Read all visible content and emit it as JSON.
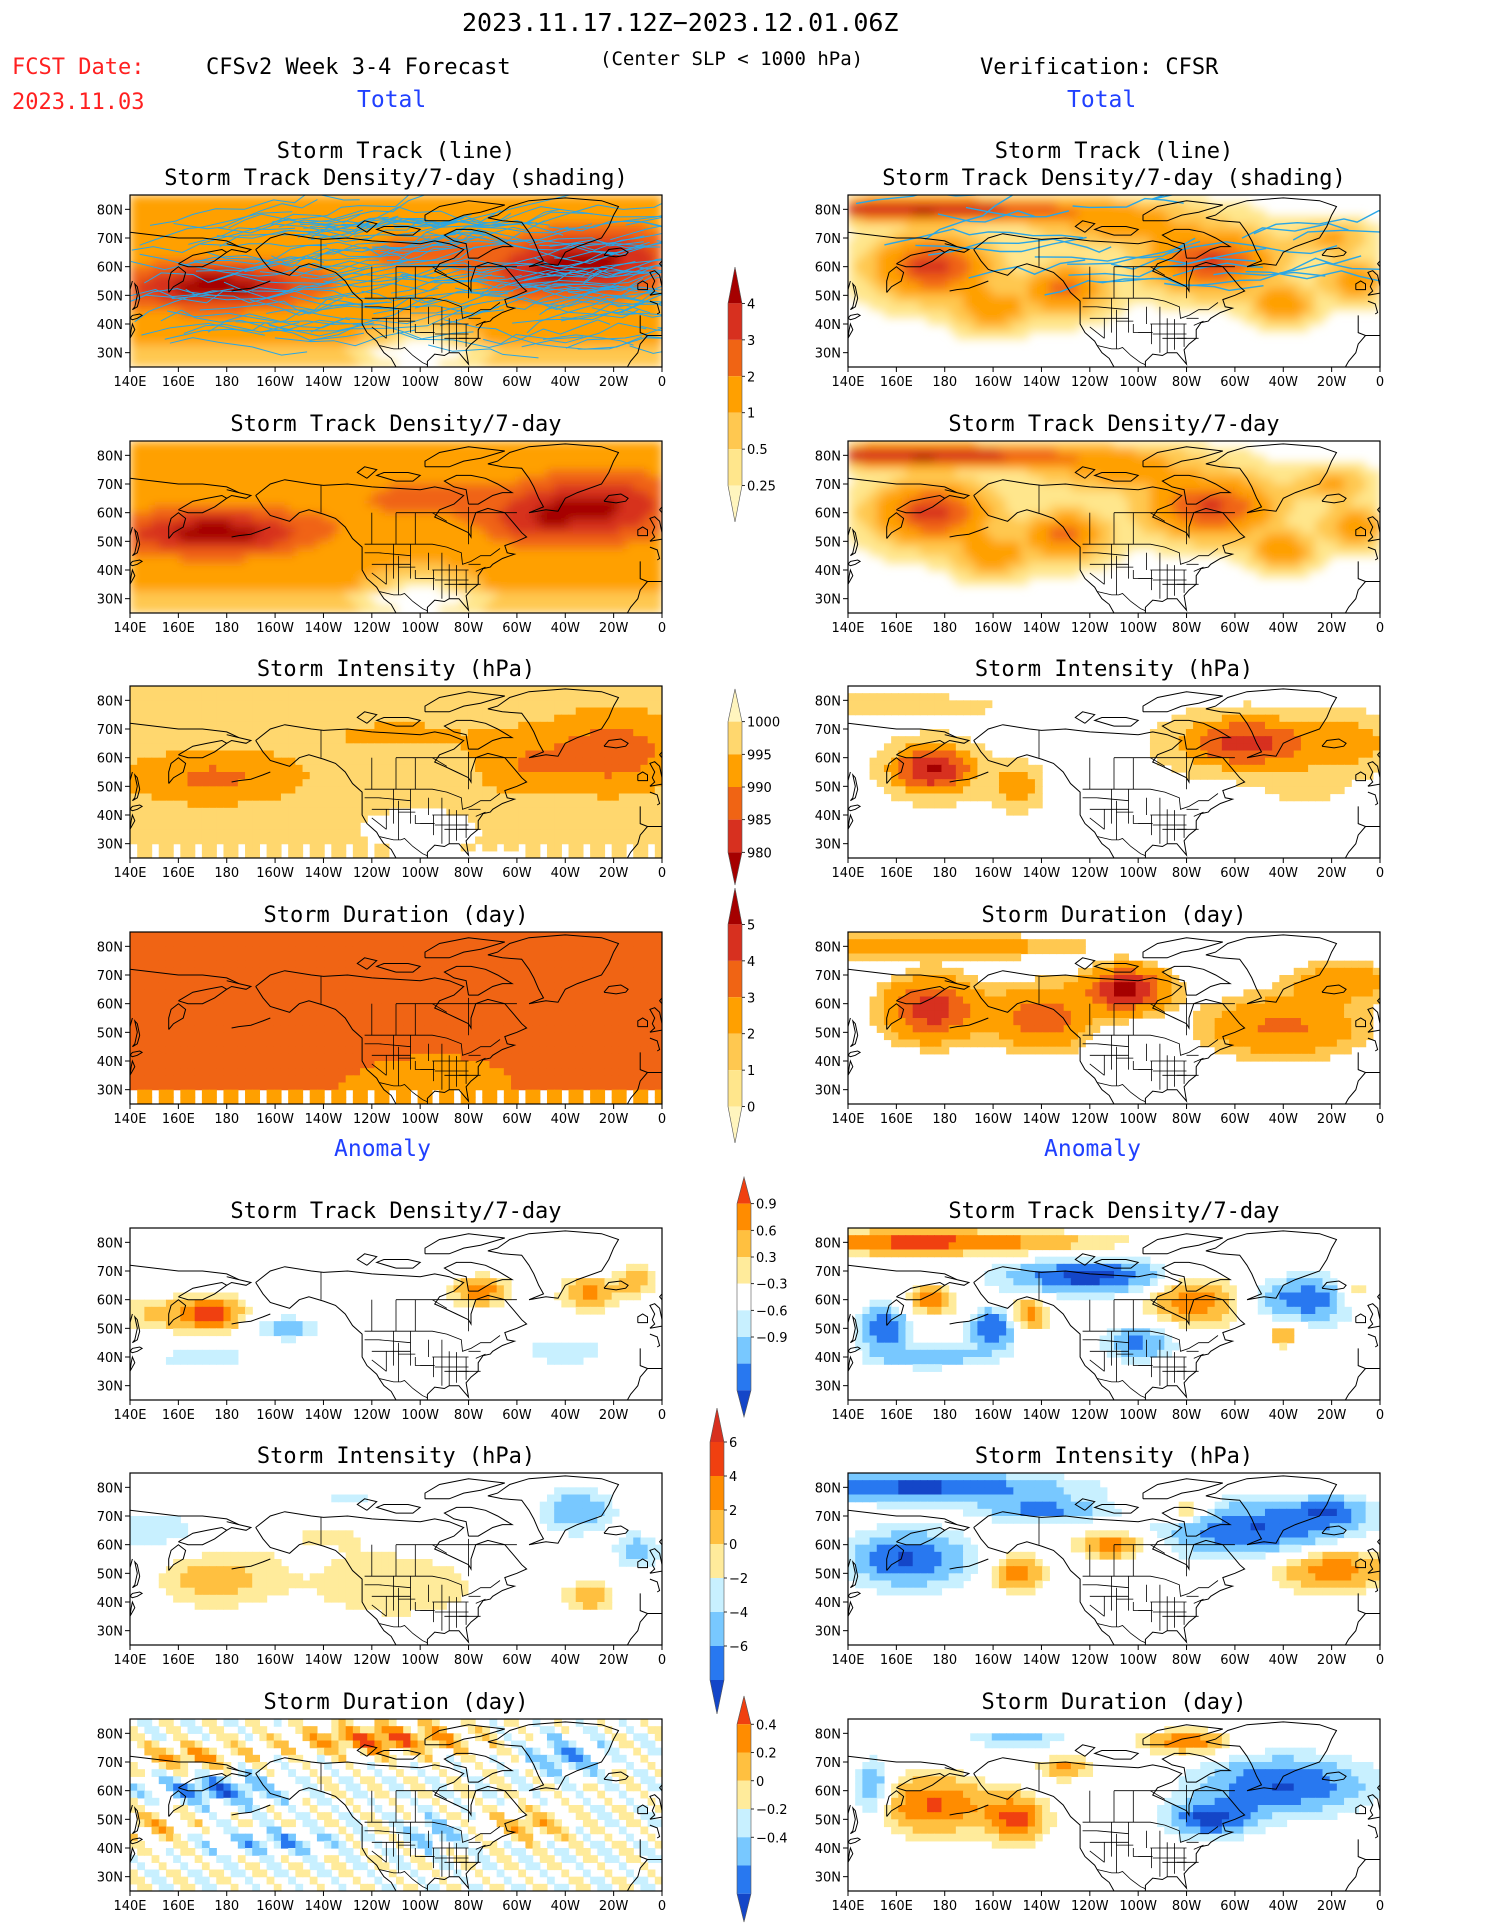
{
  "header": {
    "period": "2023.11.17.12Z−2023.12.01.06Z",
    "fcst_label": "FCST Date:",
    "fcst_date": "2023.11.03",
    "forecast_title": "CFSv2 Week 3-4 Forecast",
    "criterion": "(Center SLP < 1000 hPa)",
    "verification": "Verification: CFSR",
    "section_total": "Total",
    "section_anomaly": "Anomaly"
  },
  "colors": {
    "red_label": "#ff2020",
    "blue_label": "#2040ff",
    "track_line": "#29a6e6",
    "ocean": "#ffffff",
    "coast": "#000000"
  },
  "chart_data": [
    {
      "type": "heatmap",
      "panel": "fcst-track",
      "column": "CFSv2 Week 3-4 Forecast",
      "section": "Total",
      "title": [
        "Storm Track (line)",
        "Storm Track Density/7-day (shading)"
      ],
      "field": "track-density-forecast",
      "lines": true,
      "line_density": "high",
      "x_ticks": [
        "140E",
        "160E",
        "180",
        "160W",
        "140W",
        "120W",
        "100W",
        "80W",
        "60W",
        "40W",
        "20W",
        "0"
      ],
      "y_ticks": [
        "80N",
        "70N",
        "60N",
        "50N",
        "40N",
        "30N"
      ],
      "xlim": [
        "140E",
        "0"
      ],
      "ylim": [
        "25N",
        "85N"
      ]
    },
    {
      "type": "heatmap",
      "panel": "cfsr-track",
      "column": "Verification: CFSR",
      "section": "Total",
      "title": [
        "Storm Track (line)",
        "Storm Track Density/7-day (shading)"
      ],
      "field": "track-density-cfsr",
      "lines": true,
      "line_density": "low",
      "x_ticks": [
        "140E",
        "160E",
        "180",
        "160W",
        "140W",
        "120W",
        "100W",
        "80W",
        "60W",
        "40W",
        "20W",
        "0"
      ],
      "y_ticks": [
        "80N",
        "70N",
        "60N",
        "50N",
        "40N",
        "30N"
      ],
      "xlim": [
        "140E",
        "0"
      ],
      "ylim": [
        "25N",
        "85N"
      ]
    },
    {
      "type": "heatmap",
      "panel": "fcst-density",
      "column": "CFSv2 Week 3-4 Forecast",
      "section": "Total",
      "title": [
        "Storm Track Density/7-day"
      ],
      "field": "track-density-forecast",
      "x_ticks": [
        "140E",
        "160E",
        "180",
        "160W",
        "140W",
        "120W",
        "100W",
        "80W",
        "60W",
        "40W",
        "20W",
        "0"
      ],
      "y_ticks": [
        "80N",
        "70N",
        "60N",
        "50N",
        "40N",
        "30N"
      ],
      "xlim": [
        "140E",
        "0"
      ],
      "ylim": [
        "25N",
        "85N"
      ]
    },
    {
      "type": "heatmap",
      "panel": "cfsr-density",
      "column": "Verification: CFSR",
      "section": "Total",
      "title": [
        "Storm Track Density/7-day"
      ],
      "field": "track-density-cfsr",
      "x_ticks": [
        "140E",
        "160E",
        "180",
        "160W",
        "140W",
        "120W",
        "100W",
        "80W",
        "60W",
        "40W",
        "20W",
        "0"
      ],
      "y_ticks": [
        "80N",
        "70N",
        "60N",
        "50N",
        "40N",
        "30N"
      ],
      "xlim": [
        "140E",
        "0"
      ],
      "ylim": [
        "25N",
        "85N"
      ]
    },
    {
      "type": "heatmap",
      "panel": "fcst-intensity",
      "column": "CFSv2 Week 3-4 Forecast",
      "section": "Total",
      "title": [
        "Storm Intensity (hPa)"
      ],
      "field": "intensity-forecast",
      "x_ticks": [
        "140E",
        "160E",
        "180",
        "160W",
        "140W",
        "120W",
        "100W",
        "80W",
        "60W",
        "40W",
        "20W",
        "0"
      ],
      "y_ticks": [
        "80N",
        "70N",
        "60N",
        "50N",
        "40N",
        "30N"
      ],
      "xlim": [
        "140E",
        "0"
      ],
      "ylim": [
        "25N",
        "85N"
      ]
    },
    {
      "type": "heatmap",
      "panel": "cfsr-intensity",
      "column": "Verification: CFSR",
      "section": "Total",
      "title": [
        "Storm Intensity (hPa)"
      ],
      "field": "intensity-cfsr",
      "x_ticks": [
        "140E",
        "160E",
        "180",
        "160W",
        "140W",
        "120W",
        "100W",
        "80W",
        "60W",
        "40W",
        "20W",
        "0"
      ],
      "y_ticks": [
        "80N",
        "70N",
        "60N",
        "50N",
        "40N",
        "30N"
      ],
      "xlim": [
        "140E",
        "0"
      ],
      "ylim": [
        "25N",
        "85N"
      ]
    },
    {
      "type": "heatmap",
      "panel": "fcst-duration",
      "column": "CFSv2 Week 3-4 Forecast",
      "section": "Total",
      "title": [
        "Storm Duration (day)"
      ],
      "field": "duration-forecast",
      "x_ticks": [
        "140E",
        "160E",
        "180",
        "160W",
        "140W",
        "120W",
        "100W",
        "80W",
        "60W",
        "40W",
        "20W",
        "0"
      ],
      "y_ticks": [
        "80N",
        "70N",
        "60N",
        "50N",
        "40N",
        "30N"
      ],
      "xlim": [
        "140E",
        "0"
      ],
      "ylim": [
        "25N",
        "85N"
      ]
    },
    {
      "type": "heatmap",
      "panel": "cfsr-duration",
      "column": "Verification: CFSR",
      "section": "Total",
      "title": [
        "Storm Duration (day)"
      ],
      "field": "duration-cfsr",
      "x_ticks": [
        "140E",
        "160E",
        "180",
        "160W",
        "140W",
        "120W",
        "100W",
        "80W",
        "60W",
        "40W",
        "20W",
        "0"
      ],
      "y_ticks": [
        "80N",
        "70N",
        "60N",
        "50N",
        "40N",
        "30N"
      ],
      "xlim": [
        "140E",
        "0"
      ],
      "ylim": [
        "25N",
        "85N"
      ]
    },
    {
      "type": "heatmap",
      "panel": "fcst-density-anom",
      "column": "CFSv2 Week 3-4 Forecast",
      "section": "Anomaly",
      "title": [
        "Storm Track Density/7-day"
      ],
      "field": "density-anomaly-forecast",
      "x_ticks": [
        "140E",
        "160E",
        "180",
        "160W",
        "140W",
        "120W",
        "100W",
        "80W",
        "60W",
        "40W",
        "20W",
        "0"
      ],
      "y_ticks": [
        "80N",
        "70N",
        "60N",
        "50N",
        "40N",
        "30N"
      ],
      "xlim": [
        "140E",
        "0"
      ],
      "ylim": [
        "25N",
        "85N"
      ]
    },
    {
      "type": "heatmap",
      "panel": "cfsr-density-anom",
      "column": "Verification: CFSR",
      "section": "Anomaly",
      "title": [
        "Storm Track Density/7-day"
      ],
      "field": "density-anomaly-cfsr",
      "x_ticks": [
        "140E",
        "160E",
        "180",
        "160W",
        "140W",
        "120W",
        "100W",
        "80W",
        "60W",
        "40W",
        "20W",
        "0"
      ],
      "y_ticks": [
        "80N",
        "70N",
        "60N",
        "50N",
        "40N",
        "30N"
      ],
      "xlim": [
        "140E",
        "0"
      ],
      "ylim": [
        "25N",
        "85N"
      ]
    },
    {
      "type": "heatmap",
      "panel": "fcst-intensity-anom",
      "column": "CFSv2 Week 3-4 Forecast",
      "section": "Anomaly",
      "title": [
        "Storm Intensity (hPa)"
      ],
      "field": "intensity-anomaly-forecast",
      "x_ticks": [
        "140E",
        "160E",
        "180",
        "160W",
        "140W",
        "120W",
        "100W",
        "80W",
        "60W",
        "40W",
        "20W",
        "0"
      ],
      "y_ticks": [
        "80N",
        "70N",
        "60N",
        "50N",
        "40N",
        "30N"
      ],
      "xlim": [
        "140E",
        "0"
      ],
      "ylim": [
        "25N",
        "85N"
      ]
    },
    {
      "type": "heatmap",
      "panel": "cfsr-intensity-anom",
      "column": "Verification: CFSR",
      "section": "Anomaly",
      "title": [
        "Storm Intensity (hPa)"
      ],
      "field": "intensity-anomaly-cfsr",
      "x_ticks": [
        "140E",
        "160E",
        "180",
        "160W",
        "140W",
        "120W",
        "100W",
        "80W",
        "60W",
        "40W",
        "20W",
        "0"
      ],
      "y_ticks": [
        "80N",
        "70N",
        "60N",
        "50N",
        "40N",
        "30N"
      ],
      "xlim": [
        "140E",
        "0"
      ],
      "ylim": [
        "25N",
        "85N"
      ]
    },
    {
      "type": "heatmap",
      "panel": "fcst-duration-anom",
      "column": "CFSv2 Week 3-4 Forecast",
      "section": "Anomaly",
      "title": [
        "Storm Duration (day)"
      ],
      "field": "duration-anomaly-forecast",
      "x_ticks": [
        "140E",
        "160E",
        "180",
        "160W",
        "140W",
        "120W",
        "100W",
        "80W",
        "60W",
        "40W",
        "20W",
        "0"
      ],
      "y_ticks": [
        "80N",
        "70N",
        "60N",
        "50N",
        "40N",
        "30N"
      ],
      "xlim": [
        "140E",
        "0"
      ],
      "ylim": [
        "25N",
        "85N"
      ]
    },
    {
      "type": "heatmap",
      "panel": "cfsr-duration-anom",
      "column": "Verification: CFSR",
      "section": "Anomaly",
      "title": [
        "Storm Duration (day)"
      ],
      "field": "duration-anomaly-cfsr",
      "x_ticks": [
        "140E",
        "160E",
        "180",
        "160W",
        "140W",
        "120W",
        "100W",
        "80W",
        "60W",
        "40W",
        "20W",
        "0"
      ],
      "y_ticks": [
        "80N",
        "70N",
        "60N",
        "50N",
        "40N",
        "30N"
      ],
      "xlim": [
        "140E",
        "0"
      ],
      "ylim": [
        "25N",
        "85N"
      ]
    }
  ],
  "colorbars": [
    {
      "id": "cb-density",
      "labels": [
        "4",
        "3",
        "2",
        "1",
        "0.5",
        "0.25"
      ],
      "colors": [
        "#a50000",
        "#d7301f",
        "#f06414",
        "#ffa000",
        "#ffc850",
        "#ffe68c",
        "#fff5be"
      ]
    },
    {
      "id": "cb-intensity",
      "labels": [
        "1000",
        "995",
        "990",
        "985",
        "980"
      ],
      "colors": [
        "#fff5be",
        "#ffd76e",
        "#ffa000",
        "#f06414",
        "#d7301f",
        "#a50000"
      ]
    },
    {
      "id": "cb-duration",
      "labels": [
        "5",
        "4",
        "3",
        "2",
        "1",
        "0"
      ],
      "colors": [
        "#a50000",
        "#d7301f",
        "#f06414",
        "#ffa000",
        "#ffc850",
        "#ffe68c",
        "#fff5be"
      ]
    },
    {
      "id": "cb-density-anom",
      "labels": [
        "0.9",
        "0.6",
        "0.3",
        "−0.3",
        "−0.6",
        "−0.9"
      ],
      "colors": [
        "#f04010",
        "#ff8c00",
        "#ffc040",
        "#ffeb9b",
        "#ffffff",
        "#c8f0ff",
        "#78c8ff",
        "#2878f0",
        "#1446c8"
      ]
    },
    {
      "id": "cb-intensity-anom",
      "labels": [
        "6",
        "4",
        "2",
        "0",
        "−2",
        "−4",
        "−6"
      ],
      "colors": [
        "#d7301f",
        "#f04010",
        "#ff8c00",
        "#ffc040",
        "#ffeb9b",
        "#c8f0ff",
        "#78c8ff",
        "#2878f0",
        "#1446c8"
      ]
    },
    {
      "id": "cb-duration-anom",
      "labels": [
        "0.4",
        "0.2",
        "0",
        "−0.2",
        "−0.4"
      ],
      "colors": [
        "#f04010",
        "#ff8c00",
        "#ffc040",
        "#ffeb9b",
        "#c8f0ff",
        "#78c8ff",
        "#2878f0",
        "#1446c8"
      ]
    }
  ]
}
